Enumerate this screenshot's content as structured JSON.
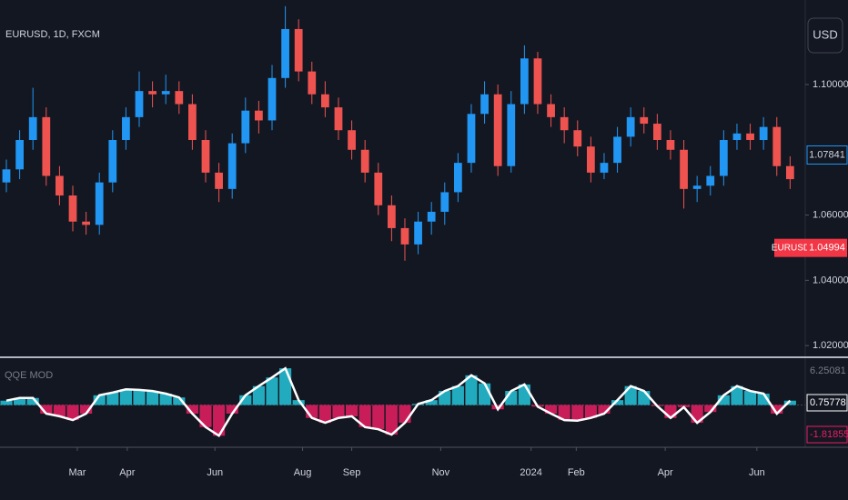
{
  "chart_data": [
    {
      "type": "candlestick",
      "title": "EURUSD, 1D, FXCM",
      "currency": "USD",
      "up_color": "#2196f3",
      "down_color": "#ef5350",
      "open": [
        1.07,
        1.074,
        1.083,
        1.09,
        1.072,
        1.066,
        1.058,
        1.057,
        1.07,
        1.083,
        1.09,
        1.098,
        1.097,
        1.098,
        1.094,
        1.083,
        1.073,
        1.068,
        1.082,
        1.092,
        1.089,
        1.102,
        1.117,
        1.104,
        1.097,
        1.093,
        1.086,
        1.08,
        1.073,
        1.063,
        1.056,
        1.051,
        1.058,
        1.061,
        1.067,
        1.076,
        1.091,
        1.097,
        1.075,
        1.094,
        1.108,
        1.094,
        1.09,
        1.086,
        1.081,
        1.073,
        1.076,
        1.084,
        1.09,
        1.088,
        1.083,
        1.08,
        1.068,
        1.069,
        1.072,
        1.083,
        1.085,
        1.083,
        1.087,
        1.075
      ],
      "high": [
        1.077,
        1.086,
        1.099,
        1.093,
        1.075,
        1.069,
        1.061,
        1.073,
        1.086,
        1.093,
        1.104,
        1.101,
        1.103,
        1.101,
        1.097,
        1.086,
        1.076,
        1.085,
        1.096,
        1.095,
        1.106,
        1.124,
        1.12,
        1.107,
        1.101,
        1.096,
        1.089,
        1.083,
        1.076,
        1.066,
        1.059,
        1.061,
        1.064,
        1.07,
        1.079,
        1.094,
        1.101,
        1.1,
        1.098,
        1.112,
        1.11,
        1.097,
        1.093,
        1.089,
        1.084,
        1.079,
        1.087,
        1.093,
        1.093,
        1.091,
        1.086,
        1.083,
        1.072,
        1.075,
        1.086,
        1.088,
        1.088,
        1.09,
        1.09,
        1.078
      ],
      "low": [
        1.067,
        1.071,
        1.08,
        1.069,
        1.063,
        1.055,
        1.054,
        1.054,
        1.067,
        1.08,
        1.087,
        1.093,
        1.094,
        1.091,
        1.08,
        1.07,
        1.064,
        1.065,
        1.079,
        1.085,
        1.086,
        1.099,
        1.101,
        1.094,
        1.09,
        1.083,
        1.077,
        1.07,
        1.06,
        1.052,
        1.046,
        1.048,
        1.054,
        1.057,
        1.064,
        1.073,
        1.088,
        1.072,
        1.073,
        1.091,
        1.091,
        1.087,
        1.082,
        1.078,
        1.07,
        1.071,
        1.073,
        1.081,
        1.085,
        1.08,
        1.077,
        1.062,
        1.064,
        1.066,
        1.069,
        1.08,
        1.08,
        1.08,
        1.072,
        1.068
      ],
      "close": [
        1.074,
        1.083,
        1.09,
        1.072,
        1.066,
        1.058,
        1.057,
        1.07,
        1.083,
        1.09,
        1.098,
        1.097,
        1.098,
        1.094,
        1.083,
        1.073,
        1.068,
        1.082,
        1.092,
        1.089,
        1.102,
        1.117,
        1.104,
        1.097,
        1.093,
        1.086,
        1.08,
        1.073,
        1.063,
        1.056,
        1.051,
        1.058,
        1.061,
        1.067,
        1.076,
        1.091,
        1.097,
        1.075,
        1.094,
        1.108,
        1.094,
        1.09,
        1.086,
        1.081,
        1.073,
        1.076,
        1.084,
        1.09,
        1.088,
        1.083,
        1.08,
        1.068,
        1.069,
        1.072,
        1.083,
        1.085,
        1.083,
        1.087,
        1.075,
        1.071
      ],
      "xlim": [
        -0.48,
        60.14
      ],
      "xticks": [
        {
          "value": 5.34,
          "label": "Mar"
        },
        {
          "value": 9.1,
          "label": "Apr"
        },
        {
          "value": 15.7,
          "label": "Jun"
        },
        {
          "value": 22.3,
          "label": "Aug"
        },
        {
          "value": 26.0,
          "label": "Sep"
        },
        {
          "value": 32.7,
          "label": "Nov"
        },
        {
          "value": 39.5,
          "label": "2024"
        },
        {
          "value": 42.9,
          "label": "Feb"
        },
        {
          "value": 49.6,
          "label": "Apr"
        },
        {
          "value": 56.5,
          "label": "Jun"
        }
      ],
      "ylim": [
        1.0167,
        1.1259
      ],
      "yticks": [
        {
          "value": 1.02,
          "label": "1.02000"
        },
        {
          "value": 1.04,
          "label": "1.04000"
        },
        {
          "value": 1.06,
          "label": "1.06000"
        },
        {
          "value": 1.1,
          "label": "1.10000"
        }
      ],
      "price_marks": [
        {
          "value": 1.07841,
          "color": "#2196f3"
        },
        {
          "name": "EURUSD",
          "value": 1.04994,
          "color": "#f23645"
        }
      ]
    },
    {
      "type": "oscillator",
      "title": "QQE MOD",
      "positive_color": "#26c6da",
      "negative_color": "#e91e63",
      "line_color": "#ffffff",
      "values": [
        0.8,
        1.3,
        1.3,
        -1.6,
        -2.1,
        -2.8,
        -1.6,
        1.8,
        2.3,
        2.9,
        2.8,
        2.6,
        2.1,
        1.4,
        -1.6,
        -4.1,
        -5.7,
        -1.6,
        1.8,
        3.5,
        5.1,
        6.8,
        0.9,
        -2.4,
        -3.3,
        -2.4,
        -2.1,
        -4.1,
        -4.5,
        -5.5,
        -3.3,
        0.2,
        0.9,
        2.6,
        3.5,
        5.5,
        4.0,
        -0.8,
        2.6,
        3.8,
        -0.3,
        -1.6,
        -2.8,
        -2.9,
        -2.4,
        -1.6,
        0.9,
        3.5,
        2.6,
        -0.2,
        -2.4,
        -0.4,
        -3.3,
        -1.3,
        1.8,
        3.5,
        2.6,
        2.1,
        -1.6,
        0.8
      ],
      "ylim": [
        -7.5,
        8
      ],
      "value_marks": [
        {
          "value": 6.25081,
          "color": "#787b86"
        },
        {
          "value": 0.75778,
          "color": "#ffffff"
        },
        {
          "value": -1.81855,
          "color": "#e91e63"
        }
      ]
    }
  ]
}
